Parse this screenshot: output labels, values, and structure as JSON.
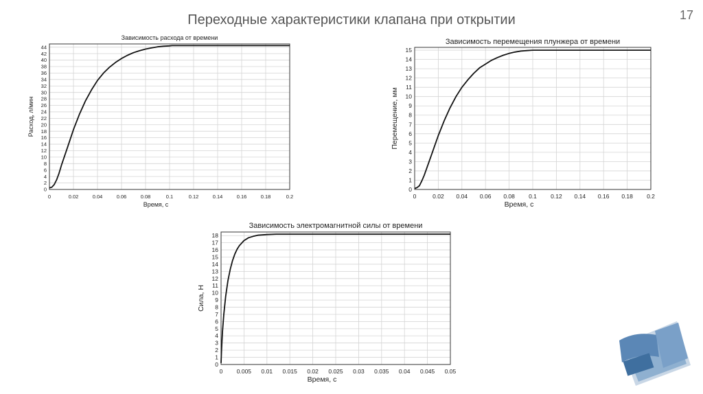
{
  "slide": {
    "title": "Переходные характеристики клапана при открытии",
    "number": "17"
  },
  "chart_data": [
    {
      "type": "line",
      "title": "Зависимость расхода от времени",
      "xlabel": "Время, с",
      "ylabel": "Расход, л/мин",
      "xlim": [
        0,
        0.2
      ],
      "ylim": [
        0,
        45
      ],
      "xticks": [
        "0",
        "0.02",
        "0.04",
        "0.06",
        "0.08",
        "0.1",
        "0.12",
        "0.14",
        "0.16",
        "0.18",
        "0.2"
      ],
      "yticks": [
        "0",
        "2",
        "4",
        "6",
        "8",
        "10",
        "12",
        "14",
        "16",
        "18",
        "20",
        "22",
        "24",
        "26",
        "28",
        "30",
        "32",
        "34",
        "36",
        "38",
        "40",
        "42",
        "44"
      ],
      "grid": true,
      "series": [
        {
          "x": [
            0,
            0.002,
            0.004,
            0.006,
            0.008,
            0.01,
            0.015,
            0.02,
            0.025,
            0.03,
            0.035,
            0.04,
            0.045,
            0.05,
            0.055,
            0.06,
            0.065,
            0.07,
            0.075,
            0.08,
            0.085,
            0.09,
            0.095,
            0.1,
            0.102,
            0.12,
            0.15,
            0.2
          ],
          "y": [
            0.5,
            0.7,
            1.5,
            3.0,
            5.0,
            7.5,
            13.0,
            18.5,
            23.3,
            27.4,
            30.8,
            33.7,
            36.0,
            37.8,
            39.3,
            40.5,
            41.5,
            42.3,
            42.9,
            43.4,
            43.8,
            44.1,
            44.3,
            44.4,
            44.5,
            44.5,
            44.5,
            44.5
          ]
        }
      ]
    },
    {
      "type": "line",
      "title": "Зависимость перемещения плунжера от времени",
      "xlabel": "Время, с",
      "ylabel": "Перемещение, мм",
      "xlim": [
        0,
        0.2
      ],
      "ylim": [
        0,
        15.3
      ],
      "xticks": [
        "0",
        "0.02",
        "0.04",
        "0.06",
        "0.08",
        "0.1",
        "0.12",
        "0.14",
        "0.16",
        "0.18",
        "0.2"
      ],
      "yticks": [
        "0",
        "1",
        "2",
        "3",
        "4",
        "5",
        "6",
        "7",
        "8",
        "9",
        "10",
        "11",
        "12",
        "13",
        "14",
        "15"
      ],
      "grid": true,
      "series": [
        {
          "x": [
            0,
            0.002,
            0.004,
            0.006,
            0.008,
            0.01,
            0.015,
            0.02,
            0.025,
            0.03,
            0.035,
            0.04,
            0.045,
            0.05,
            0.055,
            0.06,
            0.065,
            0.07,
            0.075,
            0.08,
            0.085,
            0.09,
            0.095,
            0.1,
            0.102,
            0.12,
            0.15,
            0.2
          ],
          "y": [
            0.1,
            0.2,
            0.4,
            0.9,
            1.5,
            2.2,
            4.0,
            5.8,
            7.4,
            8.8,
            10.0,
            11.0,
            11.8,
            12.5,
            13.1,
            13.5,
            13.9,
            14.2,
            14.45,
            14.65,
            14.8,
            14.9,
            14.95,
            15.0,
            15.0,
            15.0,
            15.0,
            15.0
          ]
        }
      ]
    },
    {
      "type": "line",
      "title": "Зависимость электромагнитной силы от времени",
      "xlabel": "Время, с",
      "ylabel": "Сила, Н",
      "xlim": [
        0,
        0.05
      ],
      "ylim": [
        0,
        18.5
      ],
      "xticks": [
        "0",
        "0.005",
        "0.01",
        "0.015",
        "0.02",
        "0.025",
        "0.03",
        "0.035",
        "0.04",
        "0.045",
        "0.05"
      ],
      "yticks": [
        "0",
        "1",
        "2",
        "3",
        "4",
        "5",
        "6",
        "7",
        "8",
        "9",
        "10",
        "11",
        "12",
        "13",
        "14",
        "15",
        "16",
        "17",
        "18"
      ],
      "grid": true,
      "series": [
        {
          "x": [
            0,
            0.0001,
            0.0003,
            0.0006,
            0.001,
            0.0015,
            0.002,
            0.0025,
            0.003,
            0.0035,
            0.004,
            0.005,
            0.006,
            0.007,
            0.008,
            0.009,
            0.01,
            0.012,
            0.015,
            0.02,
            0.03,
            0.05
          ],
          "y": [
            0.2,
            2.0,
            4.5,
            7.0,
            9.5,
            11.7,
            13.3,
            14.5,
            15.4,
            16.1,
            16.6,
            17.3,
            17.7,
            17.9,
            18.05,
            18.1,
            18.15,
            18.2,
            18.2,
            18.2,
            18.2,
            18.2
          ]
        }
      ]
    }
  ]
}
